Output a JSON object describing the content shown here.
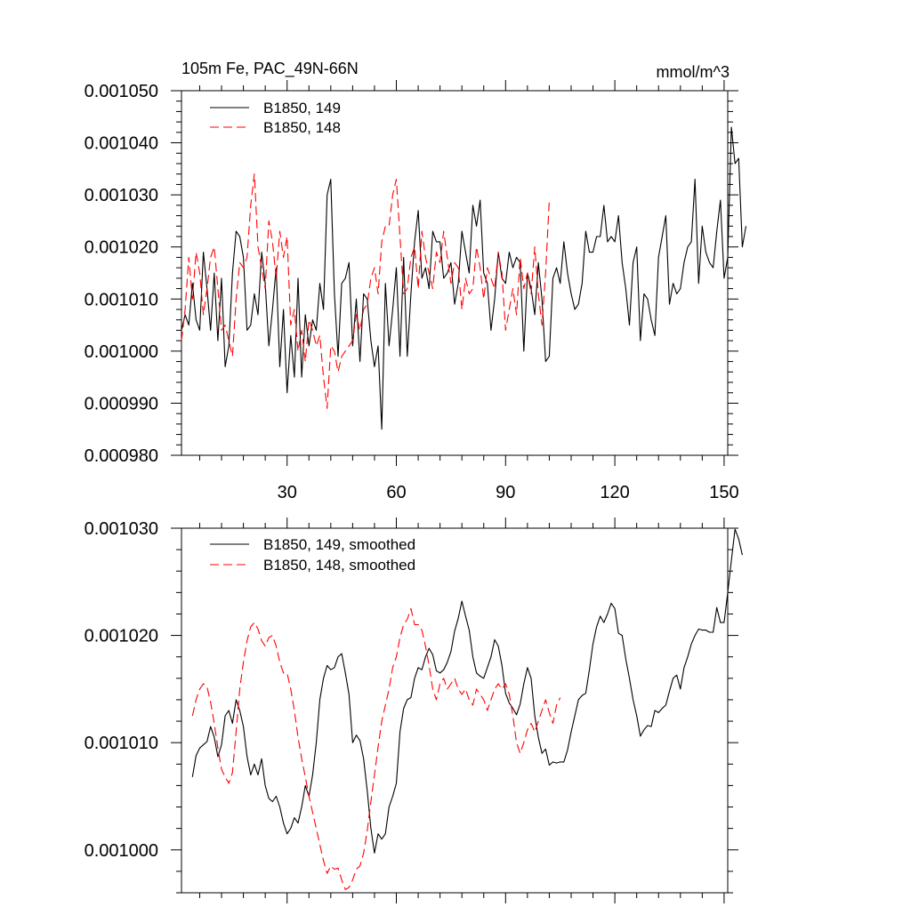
{
  "colors": {
    "run149": "#000000",
    "run148": "#ff0000",
    "axis": "#000000"
  },
  "chart_data": [
    {
      "type": "line",
      "title_left": "105m Fe, PAC_49N-66N",
      "title_right": "mmol/m^3",
      "xlim": [
        1,
        151
      ],
      "ylim": [
        0.00098,
        0.00105
      ],
      "xticks": [
        30,
        60,
        90,
        120,
        150
      ],
      "xtick_labels": [
        "30",
        "60",
        "90",
        "120",
        "150"
      ],
      "yticks": [
        0.00098,
        0.00099,
        0.001,
        0.00101,
        0.00102,
        0.00103,
        0.00104,
        0.00105
      ],
      "ytick_labels": [
        "0.000980",
        "0.000990",
        "0.001000",
        "0.001010",
        "0.001020",
        "0.001030",
        "0.001040",
        "0.001050"
      ],
      "legend": {
        "location": "top-left",
        "entries": [
          "B1850, 149",
          "B1850, 148"
        ]
      },
      "series": [
        {
          "name": "B1850, 149",
          "color": "#000000",
          "dash": "solid",
          "x_start": 1,
          "values": [
            0.001004,
            0.001007,
            0.001005,
            0.001013,
            0.001006,
            0.001004,
            0.001019,
            0.001012,
            0.001004,
            0.001015,
            0.001002,
            0.001014,
            0.000997,
            0.001001,
            0.001015,
            0.001023,
            0.001022,
            0.001018,
            0.001004,
            0.001005,
            0.001011,
            0.001007,
            0.001019,
            0.001013,
            0.001001,
            0.001008,
            0.001016,
            0.000997,
            0.001008,
            0.000992,
            0.001003,
            0.000995,
            0.001014,
            0.000995,
            0.001007,
            0.001001,
            0.001006,
            0.001004,
            0.001013,
            0.001008,
            0.00103,
            0.001033,
            0.001011,
            0.000999,
            0.001013,
            0.001014,
            0.001017,
            0.001001,
            0.00101,
            0.000998,
            0.001011,
            0.00101,
            0.001002,
            0.000997,
            0.001001,
            0.000985,
            0.001013,
            0.001001,
            0.001008,
            0.001016,
            0.000999,
            0.001018,
            0.000999,
            0.001011,
            0.001021,
            0.001027,
            0.001014,
            0.001016,
            0.001012,
            0.001023,
            0.001021,
            0.001021,
            0.001014,
            0.001015,
            0.001017,
            0.001009,
            0.001013,
            0.001023,
            0.001019,
            0.001015,
            0.001028,
            0.001024,
            0.001029,
            0.001015,
            0.001013,
            0.001004,
            0.00101,
            0.001019,
            0.001014,
            0.001013,
            0.001019,
            0.001016,
            0.001018,
            0.001017,
            0.001,
            0.001015,
            0.001012,
            0.001007,
            0.001017,
            0.00101,
            0.000998,
            0.000999,
            0.001014,
            0.001016,
            0.001013,
            0.001021,
            0.001015,
            0.001011,
            0.001008,
            0.001009,
            0.001013,
            0.001023,
            0.001019,
            0.001019,
            0.001022,
            0.001022,
            0.001028,
            0.001021,
            0.001022,
            0.001021,
            0.001026,
            0.001017,
            0.001012,
            0.001005,
            0.001017,
            0.00102,
            0.001002,
            0.001011,
            0.00101,
            0.001006,
            0.001003,
            0.001018,
            0.001022,
            0.001026,
            0.001009,
            0.001013,
            0.001011,
            0.001012,
            0.001017,
            0.00102,
            0.001021,
            0.001033,
            0.001013,
            0.001024,
            0.001019,
            0.001017,
            0.001016,
            0.001023,
            0.001029,
            0.001014,
            0.001018,
            0.001043,
            0.001036,
            0.001037,
            0.00102,
            0.001024
          ]
        },
        {
          "name": "B1850, 148",
          "color": "#ff0000",
          "dash": "dashed",
          "x_start": 1,
          "values": [
            0.001002,
            0.001008,
            0.001018,
            0.00101,
            0.001019,
            0.001015,
            0.001007,
            0.001012,
            0.001018,
            0.00102,
            0.001012,
            0.001004,
            0.001005,
            0.001002,
            0.000999,
            0.00101,
            0.001017,
            0.001016,
            0.001018,
            0.001028,
            0.001034,
            0.00102,
            0.001016,
            0.001012,
            0.001025,
            0.001021,
            0.001014,
            0.001023,
            0.001018,
            0.001022,
            0.001005,
            0.001008,
            0.001,
            0.001004,
            0.000998,
            0.001006,
            0.001004,
            0.001001,
            0.001003,
            0.000995,
            0.000989,
            0.001001,
            0.001,
            0.000996,
            0.000999,
            0.001,
            0.001001,
            0.001002,
            0.001007,
            0.001004,
            0.001008,
            0.001009,
            0.001014,
            0.001016,
            0.001011,
            0.001021,
            0.001024,
            0.001024,
            0.00103,
            0.001033,
            0.001022,
            0.001011,
            0.001012,
            0.001018,
            0.00102,
            0.001012,
            0.001023,
            0.001018,
            0.001015,
            0.001012,
            0.001019,
            0.001017,
            0.001023,
            0.001018,
            0.001013,
            0.001017,
            0.001016,
            0.001008,
            0.001014,
            0.001011,
            0.001012,
            0.00102,
            0.001016,
            0.00101,
            0.001016,
            0.001014,
            0.001012,
            0.001019,
            0.001015,
            0.001004,
            0.001008,
            0.001012,
            0.001007,
            0.001018,
            0.001012,
            0.001015,
            0.001011,
            0.00102,
            0.001011,
            0.001005,
            0.001015,
            0.001029
          ]
        }
      ]
    },
    {
      "type": "line",
      "xlim": [
        1,
        151
      ],
      "ylim": [
        0.000996,
        0.00103
      ],
      "xticks": [
        30,
        60,
        90,
        120,
        150
      ],
      "xtick_labels": [],
      "yticks": [
        0.001,
        0.00101,
        0.00102,
        0.00103
      ],
      "ytick_labels": [
        "0.001000",
        "0.001010",
        "0.001020",
        "0.001030"
      ],
      "legend": {
        "location": "top-left",
        "entries": [
          "B1850, 149, smoothed",
          "B1850, 148, smoothed"
        ]
      },
      "series": [
        {
          "name": "B1850, 149, smoothed",
          "color": "#000000",
          "dash": "solid",
          "x_start": 4,
          "values": [
            0.0010068,
            0.0010088,
            0.0010095,
            0.0010098,
            0.0010101,
            0.0010115,
            0.0010105,
            0.0010087,
            0.0010098,
            0.0010125,
            0.001013,
            0.0010118,
            0.001014,
            0.001013,
            0.0010115,
            0.0010087,
            0.001007,
            0.001008,
            0.001007,
            0.0010085,
            0.001006,
            0.0010048,
            0.0010045,
            0.001005,
            0.001004,
            0.0010025,
            0.0010015,
            0.001002,
            0.001003,
            0.0010025,
            0.001004,
            0.001006,
            0.001005,
            0.001007,
            0.00101,
            0.001014,
            0.001016,
            0.0010172,
            0.0010168,
            0.001017,
            0.001018,
            0.0010183,
            0.0010165,
            0.0010145,
            0.00101,
            0.0010107,
            0.0010102,
            0.0010085,
            0.0010055,
            0.001002,
            0.0009997,
            0.0010015,
            0.001001,
            0.0010015,
            0.001004,
            0.001005,
            0.0010062,
            0.001011,
            0.0010132,
            0.001014,
            0.0010142,
            0.001016,
            0.001017,
            0.0010168,
            0.001018,
            0.0010188,
            0.0010182,
            0.0010167,
            0.0010165,
            0.0010168,
            0.0010175,
            0.0010185,
            0.0010204,
            0.0010216,
            0.0010232,
            0.0010218,
            0.0010205,
            0.001018,
            0.0010165,
            0.0010162,
            0.001016,
            0.001017,
            0.001018,
            0.0010196,
            0.001019,
            0.0010172,
            0.0010146,
            0.0010137,
            0.0010132,
            0.0010126,
            0.0010136,
            0.0010155,
            0.001017,
            0.001016,
            0.0010125,
            0.0010105,
            0.001009,
            0.0010094,
            0.0010079,
            0.0010082,
            0.0010081,
            0.0010082,
            0.0010082,
            0.0010093,
            0.001011,
            0.0010125,
            0.001014,
            0.0010144,
            0.0010146,
            0.0010168,
            0.0010192,
            0.0010208,
            0.0010218,
            0.0010212,
            0.001022,
            0.001023,
            0.0010225,
            0.0010202,
            0.00102,
            0.0010178,
            0.001016,
            0.001014,
            0.0010125,
            0.0010106,
            0.0010112,
            0.0010116,
            0.0010115,
            0.001013,
            0.0010128,
            0.0010132,
            0.0010135,
            0.0010148,
            0.001016,
            0.0010163,
            0.001015,
            0.001017,
            0.001018,
            0.0010192,
            0.00102,
            0.0010206,
            0.0010205,
            0.0010205,
            0.0010203,
            0.0010203,
            0.0010226,
            0.0010212,
            0.0010212,
            0.001024,
            0.001027,
            0.0010299,
            0.001029,
            0.0010275
          ]
        },
        {
          "name": "B1850, 148, smoothed",
          "color": "#ff0000",
          "dash": "dashed",
          "x_start": 4,
          "values": [
            0.0010125,
            0.001014,
            0.001015,
            0.0010155,
            0.0010152,
            0.0010138,
            0.0010118,
            0.0010095,
            0.0010075,
            0.0010068,
            0.0010062,
            0.0010072,
            0.001011,
            0.001015,
            0.0010175,
            0.0010195,
            0.0010208,
            0.0010212,
            0.0010206,
            0.0010195,
            0.001019,
            0.0010198,
            0.00102,
            0.001019,
            0.0010175,
            0.0010165,
            0.0010165,
            0.001015,
            0.001013,
            0.0010105,
            0.0010085,
            0.0010068,
            0.001005,
            0.0010035,
            0.001002,
            0.0010005,
            0.000999,
            0.0009978,
            0.0009985,
            0.0009982,
            0.0009983,
            0.0009972,
            0.0009963,
            0.0009965,
            0.0009972,
            0.0009982,
            0.0009985,
            0.0009997,
            0.0010018,
            0.0010045,
            0.001007,
            0.0010096,
            0.001012,
            0.0010135,
            0.001015,
            0.001017,
            0.001018,
            0.0010198,
            0.001021,
            0.0010215,
            0.0010225,
            0.001021,
            0.001021,
            0.0010205,
            0.001019,
            0.0010172,
            0.001015,
            0.001014,
            0.0010155,
            0.001016,
            0.001015,
            0.0010155,
            0.001016,
            0.001015,
            0.0010145,
            0.001015,
            0.001014,
            0.0010135,
            0.001015,
            0.0010145,
            0.001014,
            0.001013,
            0.001014,
            0.001015,
            0.0010155,
            0.001015,
            0.0010155,
            0.0010145,
            0.0010125,
            0.00101,
            0.001009,
            0.00101,
            0.0010112,
            0.0010118,
            0.001011,
            0.001012,
            0.001013,
            0.001014,
            0.0010128,
            0.0010118,
            0.0010135,
            0.0010142
          ]
        }
      ]
    }
  ]
}
